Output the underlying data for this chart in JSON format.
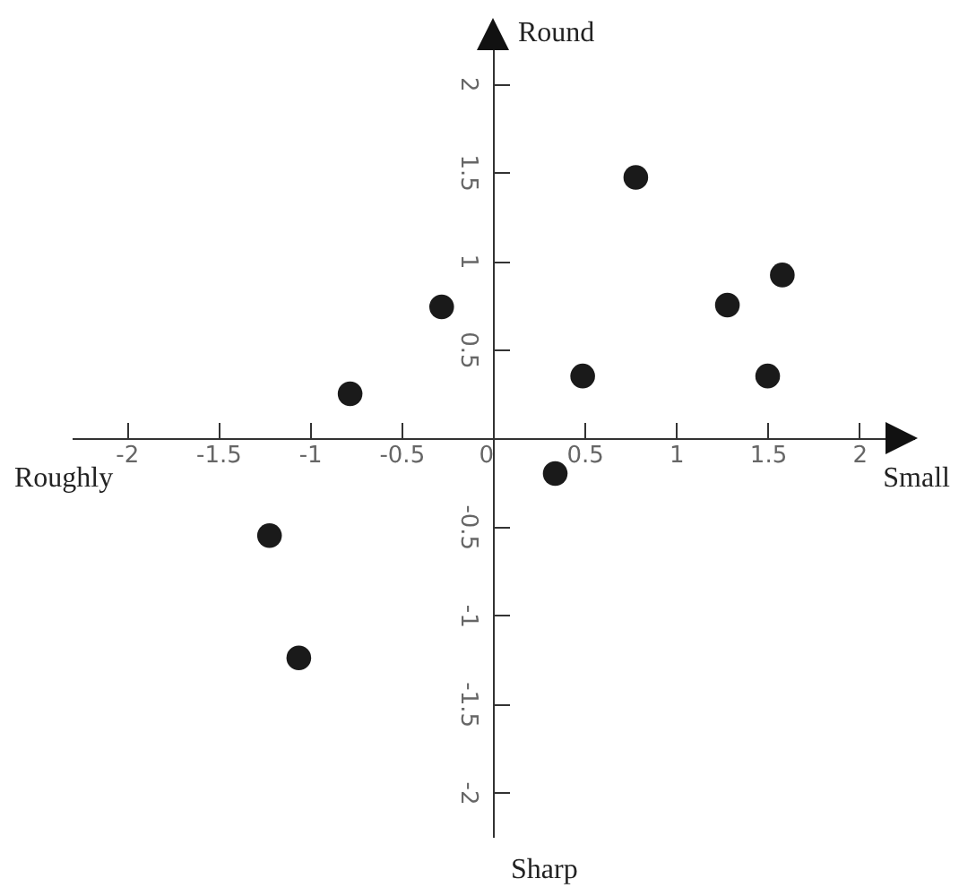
{
  "chart_data": {
    "type": "scatter",
    "color": "#1a1a1a",
    "marker": "circle",
    "grid": false,
    "x": [
      -1.22,
      -1.06,
      -0.78,
      -0.28,
      0.34,
      0.49,
      0.78,
      1.28,
      1.5,
      1.58
    ],
    "values": [
      -0.55,
      -1.24,
      0.25,
      0.74,
      -0.2,
      0.35,
      1.47,
      0.75,
      0.35,
      0.92
    ],
    "xlim": [
      -2.3,
      2.3
    ],
    "ylim": [
      -2.25,
      2.35
    ],
    "xticks": [
      -2,
      -1.5,
      -1,
      -0.5,
      0,
      0.5,
      1,
      1.5,
      2
    ],
    "yticks": [
      -2,
      -1.5,
      -1,
      -0.5,
      0.5,
      1,
      1.5,
      2
    ],
    "annotations": [
      "Round",
      "Roughly",
      "Small",
      "Sharp"
    ]
  }
}
